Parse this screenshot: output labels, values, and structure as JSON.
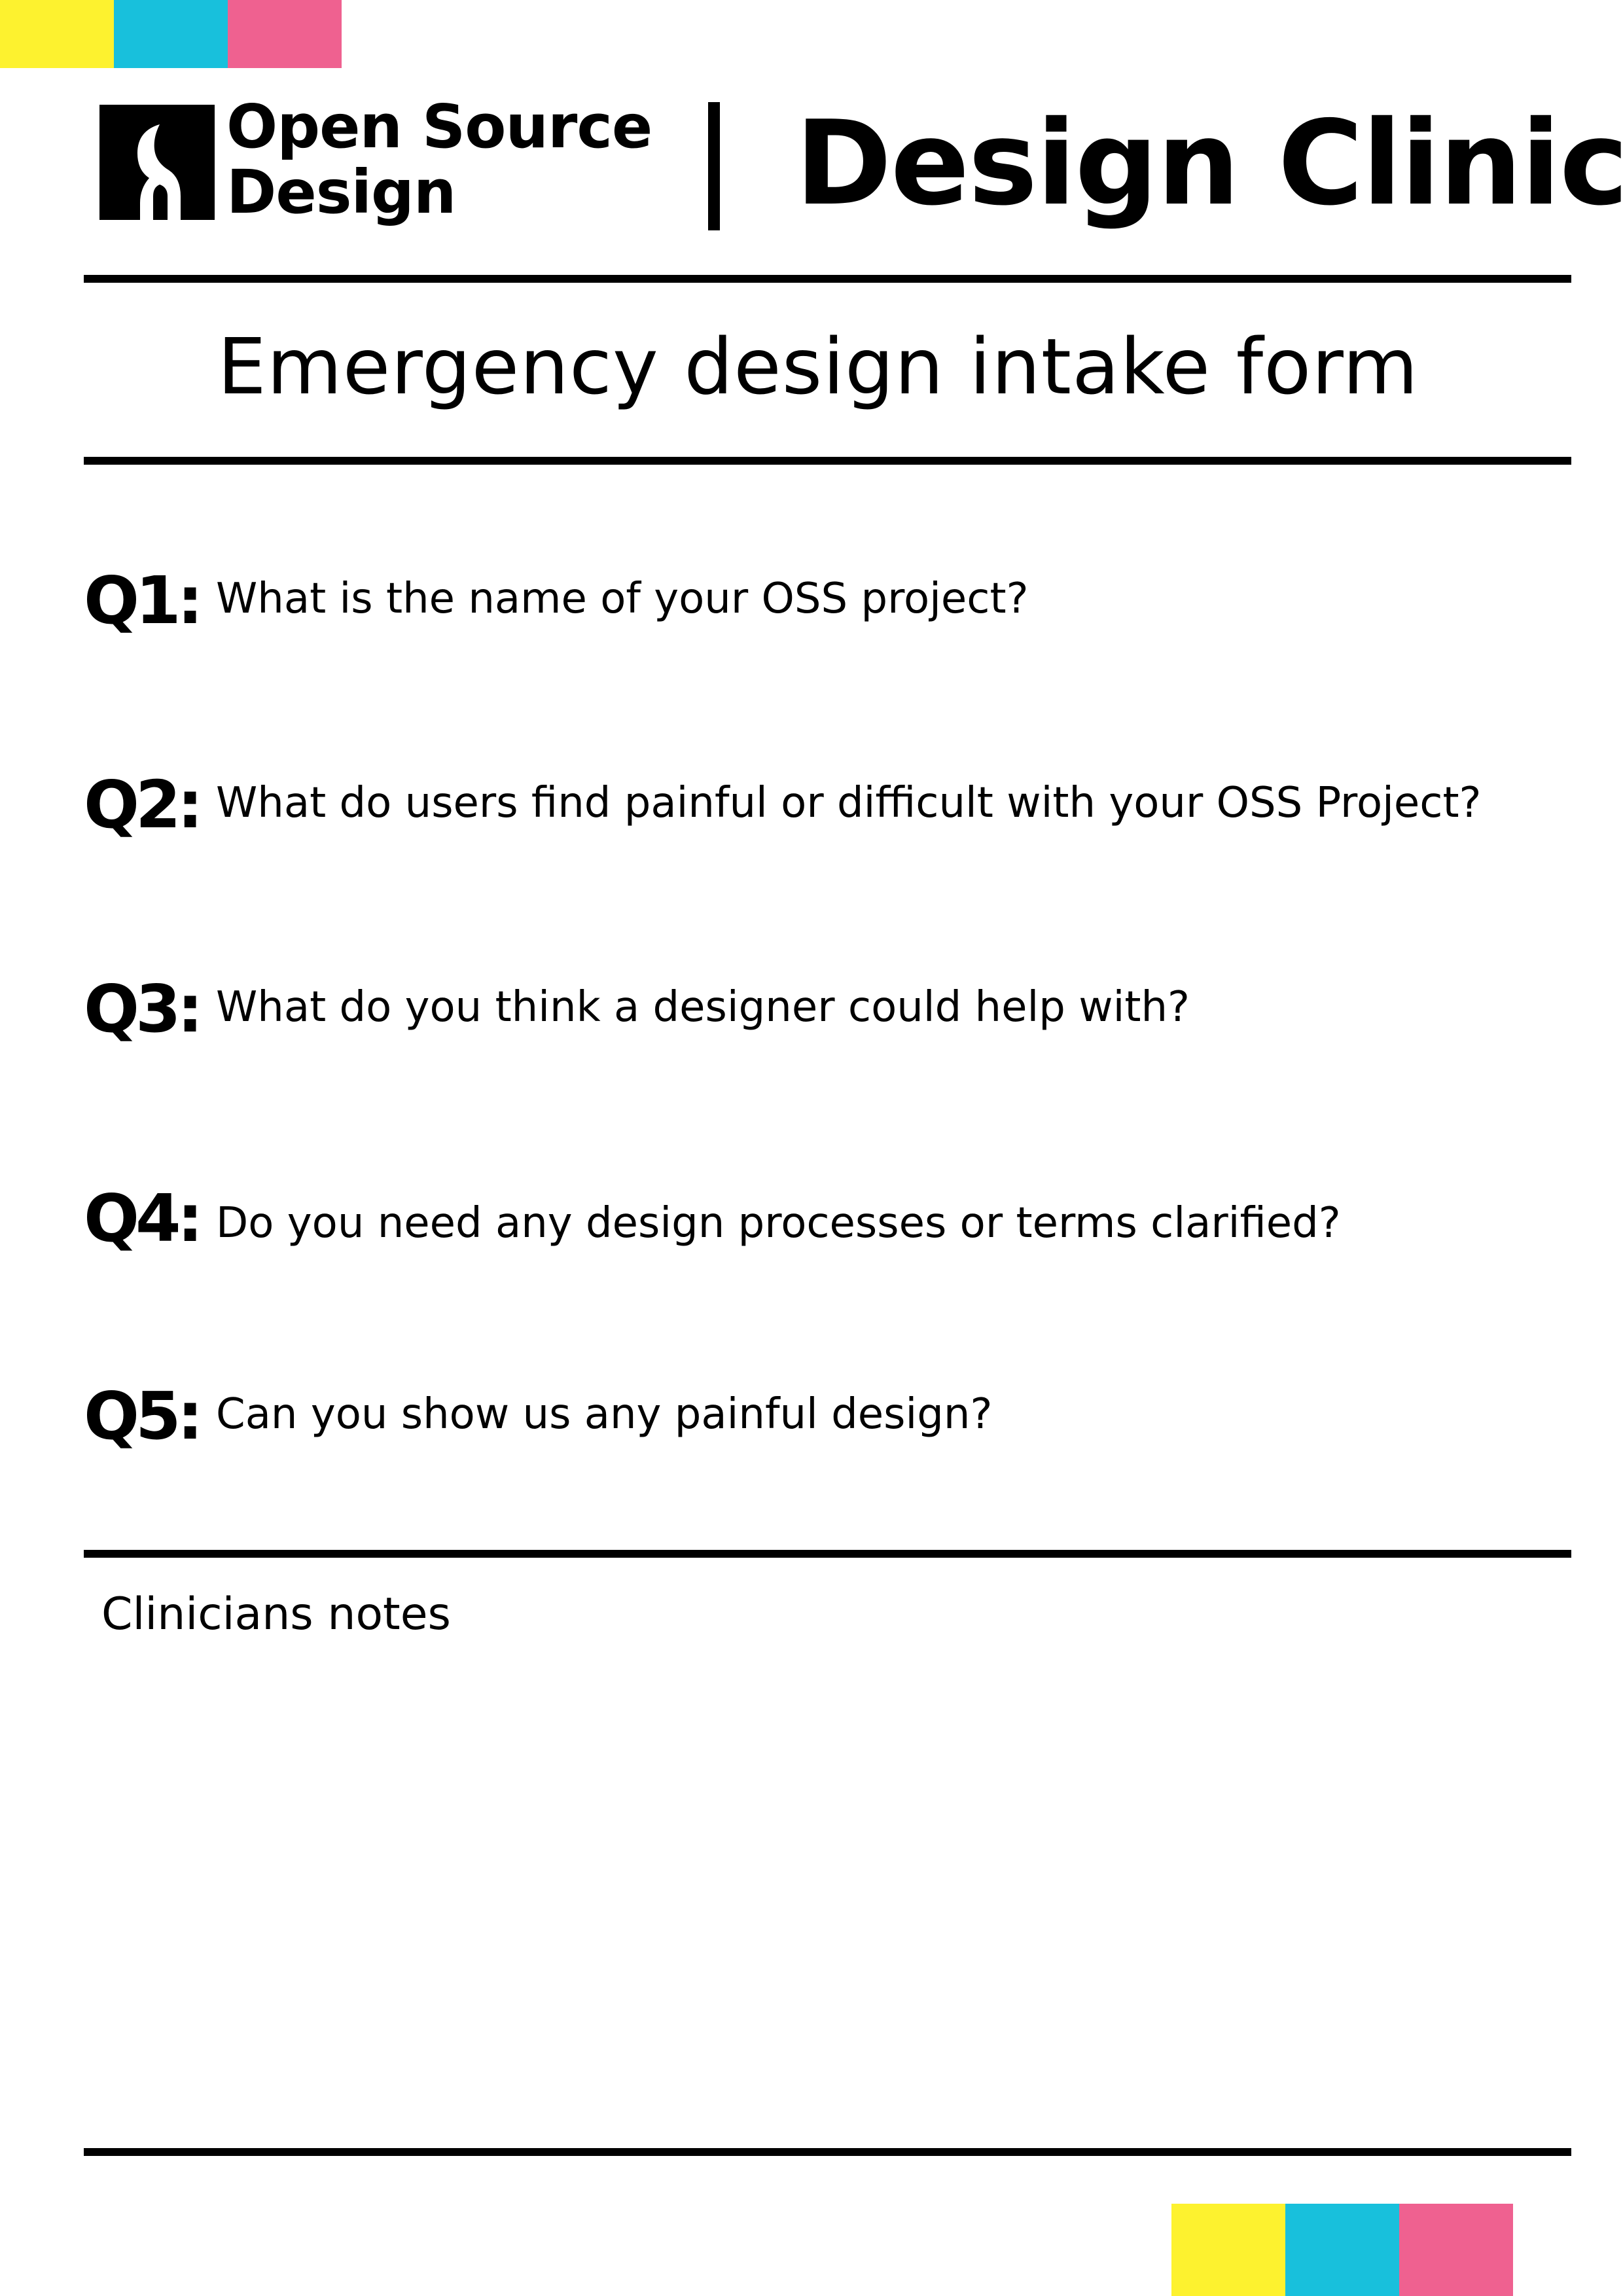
{
  "colors": {
    "yellow": "#fdf22f",
    "cyan": "#18c0dc",
    "pink": "#ef6190",
    "black": "#000000"
  },
  "header": {
    "logo_line1": "Open Source",
    "logo_line2": "Design",
    "logo_icon": "keyhole-icon",
    "separator": "|",
    "title": "Design Clinic"
  },
  "form": {
    "title": "Emergency design intake form",
    "questions": [
      {
        "label": "Q1:",
        "text": "What is the name of your OSS project?"
      },
      {
        "label": "Q2:",
        "text": "What do users find painful or difficult with your OSS Project?"
      },
      {
        "label": "Q3:",
        "text": "What do you think a designer could help with?"
      },
      {
        "label": "Q4:",
        "text": "Do you need any design processes or terms clarified?"
      },
      {
        "label": "Q5:",
        "text": "Can you show us any painful design?"
      }
    ],
    "notes_label": "Clinicians notes"
  }
}
